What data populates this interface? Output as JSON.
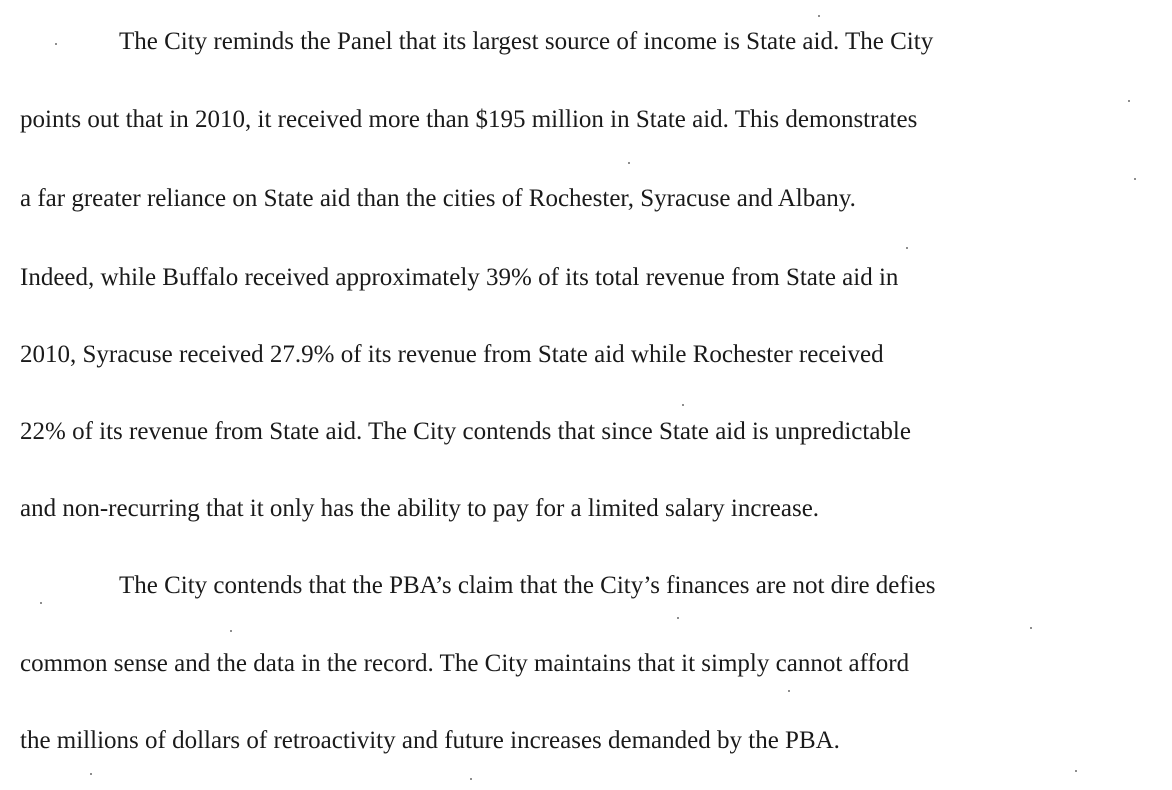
{
  "document": {
    "paragraphs": [
      {
        "lines": [
          "The City reminds the Panel that its largest source of income is State aid. The City",
          "points out that in 2010, it received more than $195 million in State aid. This demonstrates",
          "a far greater reliance on State aid than the cities of Rochester, Syracuse and Albany.",
          "Indeed, while Buffalo received approximately 39% of its total revenue from State aid in",
          "2010, Syracuse received 27.9% of its revenue from State aid while Rochester received",
          "22% of its revenue from State aid. The City contends that since State aid is unpredictable",
          "and non-recurring that it only has the ability to pay for a limited salary increase."
        ]
      },
      {
        "lines": [
          "The City contends that the PBA’s claim that the City’s finances are not dire defies",
          "common sense and the data in the record. The City maintains that it simply cannot afford",
          "the millions of dollars of retroactivity and future increases demanded by the PBA."
        ]
      }
    ]
  }
}
